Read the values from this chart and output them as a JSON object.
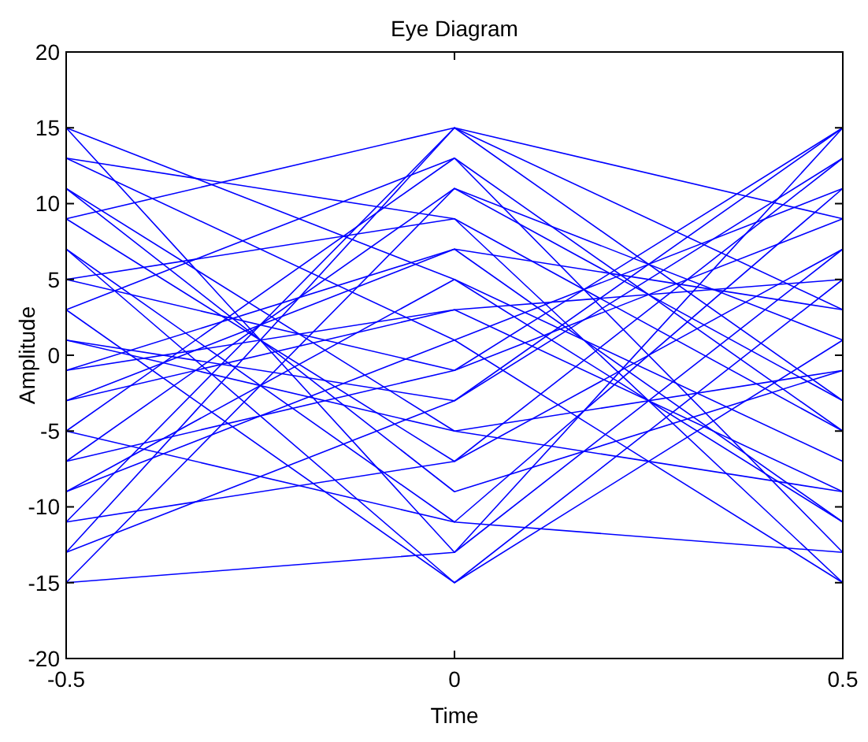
{
  "chart_data": {
    "type": "line",
    "title": "Eye Diagram",
    "xlabel": "Time",
    "ylabel": "Amplitude",
    "x": [
      -0.5,
      0,
      0.5
    ],
    "xlim": [
      -0.5,
      0.5
    ],
    "xticks": [
      -0.5,
      0,
      0.5
    ],
    "ylim": [
      -20,
      20
    ],
    "yticks": [
      -20,
      -15,
      -10,
      -5,
      0,
      5,
      10,
      15,
      20
    ],
    "grid": false,
    "marker": "none",
    "line_style": "solid",
    "series": [
      {
        "color": "#0000ff",
        "values": [
          15,
          -13,
          7
        ]
      },
      {
        "color": "#0000ff",
        "values": [
          -15,
          11,
          -3
        ]
      },
      {
        "color": "#0000ff",
        "values": [
          13,
          1,
          -15
        ]
      },
      {
        "color": "#0000ff",
        "values": [
          -11,
          15,
          9
        ]
      },
      {
        "color": "#0000ff",
        "values": [
          9,
          -7,
          13
        ]
      },
      {
        "color": "#0000ff",
        "values": [
          -9,
          5,
          -11
        ]
      },
      {
        "color": "#0000ff",
        "values": [
          7,
          -15,
          1
        ]
      },
      {
        "color": "#0000ff",
        "values": [
          -7,
          -1,
          15
        ]
      },
      {
        "color": "#0000ff",
        "values": [
          5,
          9,
          -5
        ]
      },
      {
        "color": "#0000ff",
        "values": [
          -5,
          -11,
          11
        ]
      },
      {
        "color": "#0000ff",
        "values": [
          3,
          13,
          -13
        ]
      },
      {
        "color": "#0000ff",
        "values": [
          -3,
          3,
          5
        ]
      },
      {
        "color": "#0000ff",
        "values": [
          1,
          -5,
          -9
        ]
      },
      {
        "color": "#0000ff",
        "values": [
          -1,
          7,
          3
        ]
      },
      {
        "color": "#0000ff",
        "values": [
          11,
          -9,
          -1
        ]
      },
      {
        "color": "#0000ff",
        "values": [
          -13,
          -3,
          13
        ]
      },
      {
        "color": "#0000ff",
        "values": [
          15,
          5,
          -7
        ]
      },
      {
        "color": "#0000ff",
        "values": [
          -15,
          -13,
          15
        ]
      },
      {
        "color": "#0000ff",
        "values": [
          13,
          9,
          -15
        ]
      },
      {
        "color": "#0000ff",
        "values": [
          -11,
          -7,
          7
        ]
      },
      {
        "color": "#0000ff",
        "values": [
          9,
          15,
          -3
        ]
      },
      {
        "color": "#0000ff",
        "values": [
          -9,
          1,
          11
        ]
      },
      {
        "color": "#0000ff",
        "values": [
          7,
          -11,
          -13
        ]
      },
      {
        "color": "#0000ff",
        "values": [
          -7,
          11,
          1
        ]
      },
      {
        "color": "#0000ff",
        "values": [
          5,
          -1,
          9
        ]
      },
      {
        "color": "#0000ff",
        "values": [
          -5,
          13,
          -5
        ]
      },
      {
        "color": "#0000ff",
        "values": [
          3,
          -15,
          5
        ]
      },
      {
        "color": "#0000ff",
        "values": [
          -3,
          7,
          -11
        ]
      },
      {
        "color": "#0000ff",
        "values": [
          1,
          -3,
          15
        ]
      },
      {
        "color": "#0000ff",
        "values": [
          -1,
          3,
          -9
        ]
      },
      {
        "color": "#0000ff",
        "values": [
          11,
          -5,
          -1
        ]
      },
      {
        "color": "#0000ff",
        "values": [
          -13,
          15,
          3
        ]
      }
    ]
  }
}
